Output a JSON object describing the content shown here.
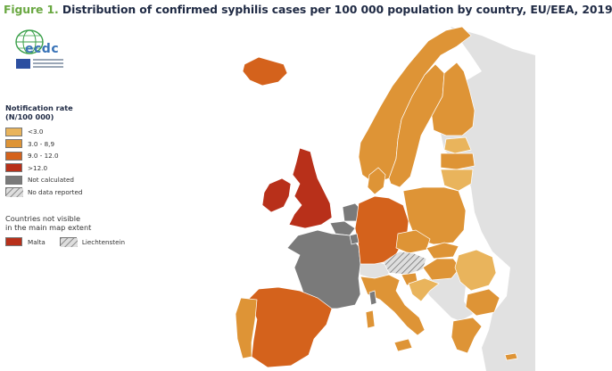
{
  "figure": {
    "label": "Figure 1.",
    "title": "Distribution of confirmed syphilis cases per 100 000 population by country, EU/EEA, 2019"
  },
  "logo": {
    "wordmark": "ecdc",
    "org_line": "EUROPEAN CENTRE FOR DISEASE PREVENTION AND CONTROL"
  },
  "legend": {
    "title_line1": "Notification rate",
    "title_line2": "(N/100 000)",
    "items": [
      {
        "label": "<3.0",
        "color": "#e9b45c"
      },
      {
        "label": "3.0 - 8,9",
        "color": "#de9436"
      },
      {
        "label": "9.0 - 12.0",
        "color": "#d4621c"
      },
      {
        "label": ">12.0",
        "color": "#b8301a"
      },
      {
        "label": "Not calculated",
        "color": "#7a7a7a"
      },
      {
        "label": "No data reported",
        "color": "hatch"
      }
    ]
  },
  "not_visible": {
    "title_line1": "Countries not visible",
    "title_line2": "in the main map extent",
    "items": [
      {
        "label": "Malta",
        "color": "#b8301a"
      },
      {
        "label": "Liechtenstein",
        "color": "hatch"
      }
    ]
  },
  "map": {
    "colors": {
      "sea": "#ffffff",
      "non_eu": "#e1e1e1",
      "lt3": "#e9b45c",
      "3to9": "#de9436",
      "9to12": "#d4621c",
      "gt12": "#b8301a",
      "not_calculated": "#7a7a7a",
      "border": "#ffffff"
    }
  }
}
